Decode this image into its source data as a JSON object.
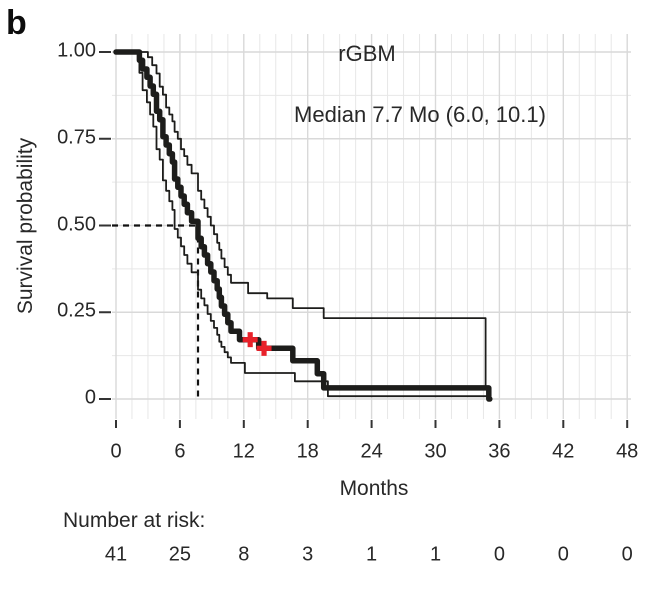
{
  "figure": {
    "panel_label": "b",
    "background": "#ffffff",
    "text_color": "#282828"
  },
  "chart_data": {
    "type": "line",
    "subtype": "kaplan-meier-step-curve",
    "title": "rGBM",
    "annotation": "Median 7.7 Mo (6.0, 10.1)",
    "xlabel": "Months",
    "ylabel": "Survival probability",
    "xlim": [
      0,
      48
    ],
    "ylim": [
      0,
      1
    ],
    "x_ticks": [
      0,
      6,
      12,
      18,
      24,
      30,
      36,
      42,
      48
    ],
    "x_tick_labels": [
      "0",
      "6",
      "12",
      "18",
      "24",
      "30",
      "36",
      "42",
      "48"
    ],
    "y_ticks": [
      1.0,
      0.75,
      0.5,
      0.25,
      0
    ],
    "y_tick_labels": [
      "1.00",
      "0.75",
      "0.50",
      "0.25",
      "0"
    ],
    "grid": {
      "shown": true,
      "x_minor_step": 1.5,
      "y_minor_step": 0.125,
      "legend": "none"
    },
    "median": {
      "months": 7.7,
      "ci_low": 6.0,
      "ci_high": 10.1,
      "survival_prob": 0.5
    },
    "colors": {
      "curve": "#1d1d1b",
      "censor": "#e8212a",
      "grid_minor": "#e7e7e7",
      "grid_major": "#d9d9d9",
      "tick": "#333333",
      "dashed_reference": "#111111"
    },
    "series": [
      {
        "name": "KM estimate",
        "role": "main",
        "width": 5.5,
        "end_month": 35.1,
        "points": [
          [
            0,
            1.0
          ],
          [
            2.2,
            0.976
          ],
          [
            2.5,
            0.951
          ],
          [
            2.9,
            0.927
          ],
          [
            3.2,
            0.902
          ],
          [
            3.5,
            0.878
          ],
          [
            3.8,
            0.829
          ],
          [
            4.1,
            0.805
          ],
          [
            4.4,
            0.756
          ],
          [
            4.7,
            0.732
          ],
          [
            5.0,
            0.707
          ],
          [
            5.3,
            0.683
          ],
          [
            5.5,
            0.634
          ],
          [
            5.8,
            0.61
          ],
          [
            6.1,
            0.585
          ],
          [
            6.4,
            0.561
          ],
          [
            6.7,
            0.537
          ],
          [
            7.1,
            0.512
          ],
          [
            7.7,
            0.463
          ],
          [
            8.0,
            0.439
          ],
          [
            8.3,
            0.415
          ],
          [
            8.6,
            0.39
          ],
          [
            8.9,
            0.366
          ],
          [
            9.2,
            0.341
          ],
          [
            9.5,
            0.317
          ],
          [
            9.7,
            0.293
          ],
          [
            9.9,
            0.268
          ],
          [
            10.2,
            0.244
          ],
          [
            10.5,
            0.22
          ],
          [
            10.8,
            0.195
          ],
          [
            11.6,
            0.171
          ],
          [
            13.4,
            0.146
          ],
          [
            16.6,
            0.11
          ],
          [
            18.9,
            0.073
          ],
          [
            19.5,
            0.032
          ],
          [
            35.0,
            0.0
          ]
        ]
      },
      {
        "name": "Upper 95% CI",
        "role": "ci_upper",
        "width": 1.8,
        "end_month": 35.05,
        "points": [
          [
            0,
            1.0
          ],
          [
            3.0,
            0.985
          ],
          [
            3.4,
            0.962
          ],
          [
            3.8,
            0.938
          ],
          [
            4.1,
            0.9
          ],
          [
            4.4,
            0.877
          ],
          [
            4.7,
            0.84
          ],
          [
            5.0,
            0.82
          ],
          [
            5.3,
            0.8
          ],
          [
            5.5,
            0.77
          ],
          [
            5.8,
            0.75
          ],
          [
            6.1,
            0.72
          ],
          [
            6.4,
            0.7
          ],
          [
            6.7,
            0.675
          ],
          [
            7.1,
            0.65
          ],
          [
            7.7,
            0.6
          ],
          [
            8.0,
            0.575
          ],
          [
            8.3,
            0.55
          ],
          [
            8.6,
            0.525
          ],
          [
            8.9,
            0.5
          ],
          [
            9.2,
            0.475
          ],
          [
            9.5,
            0.45
          ],
          [
            9.7,
            0.43
          ],
          [
            9.9,
            0.405
          ],
          [
            10.2,
            0.38
          ],
          [
            10.5,
            0.358
          ],
          [
            10.8,
            0.335
          ],
          [
            12.4,
            0.305
          ],
          [
            14.2,
            0.29
          ],
          [
            16.6,
            0.262
          ],
          [
            19.5,
            0.233
          ],
          [
            34.7,
            0.032
          ]
        ]
      },
      {
        "name": "Lower 95% CI",
        "role": "ci_lower",
        "width": 1.8,
        "end_month": 35.05,
        "points": [
          [
            0,
            1.0
          ],
          [
            2.2,
            0.94
          ],
          [
            2.5,
            0.89
          ],
          [
            2.9,
            0.855
          ],
          [
            3.2,
            0.82
          ],
          [
            3.5,
            0.785
          ],
          [
            3.8,
            0.72
          ],
          [
            4.1,
            0.69
          ],
          [
            4.4,
            0.63
          ],
          [
            4.7,
            0.6
          ],
          [
            5.0,
            0.57
          ],
          [
            5.3,
            0.545
          ],
          [
            5.5,
            0.49
          ],
          [
            5.8,
            0.465
          ],
          [
            6.1,
            0.44
          ],
          [
            6.4,
            0.415
          ],
          [
            6.7,
            0.39
          ],
          [
            7.1,
            0.365
          ],
          [
            7.7,
            0.315
          ],
          [
            8.0,
            0.29
          ],
          [
            8.3,
            0.27
          ],
          [
            8.6,
            0.245
          ],
          [
            8.9,
            0.225
          ],
          [
            9.2,
            0.205
          ],
          [
            9.5,
            0.185
          ],
          [
            9.7,
            0.165
          ],
          [
            9.9,
            0.15
          ],
          [
            10.2,
            0.135
          ],
          [
            10.5,
            0.12
          ],
          [
            10.8,
            0.104
          ],
          [
            12.1,
            0.075
          ],
          [
            16.8,
            0.051
          ],
          [
            19.9,
            0.008
          ]
        ]
      }
    ],
    "censor_marks": {
      "symbol": "plus",
      "points": [
        [
          12.6,
          0.171
        ],
        [
          13.9,
          0.146
        ]
      ]
    },
    "risk_table": {
      "label": "Number at risk:",
      "values": [
        "41",
        "25",
        "8",
        "3",
        "1",
        "1",
        "0",
        "0",
        "0"
      ]
    }
  }
}
